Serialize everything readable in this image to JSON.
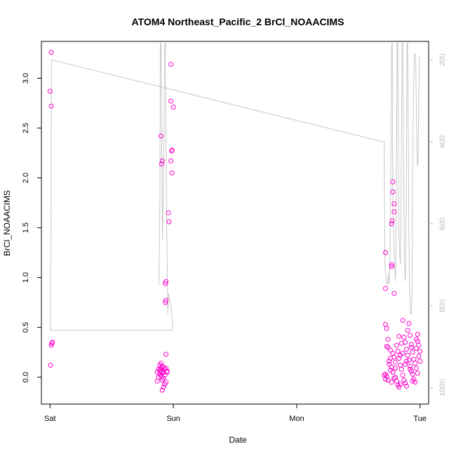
{
  "chart_data": {
    "type": "scatter",
    "title": "ATOM4 Northeast_Pacific_2 BrCl_NOAACIMS",
    "xlabel": "Date",
    "ylabel": "BrCl_NOAACIMS",
    "x_ticks": [
      {
        "value": 0,
        "label": "Sat"
      },
      {
        "value": 1,
        "label": "Sun"
      },
      {
        "value": 2,
        "label": "Mon"
      },
      {
        "value": 3,
        "label": "Tue"
      }
    ],
    "xlim": [
      -0.07,
      3.07
    ],
    "ylim": [
      -0.27,
      3.37
    ],
    "y_ticks": [
      0.0,
      0.5,
      1.0,
      1.5,
      2.0,
      2.5,
      3.0
    ],
    "y_tick_labels": [
      "0.0",
      "0.5",
      "1.0",
      "1.5",
      "2.0",
      "2.5",
      "3.0"
    ],
    "y2lim": [
      1040,
      155
    ],
    "y2_ticks": [
      200,
      400,
      600,
      800,
      1000
    ],
    "y2_tick_labels": [
      "200",
      "400",
      "600",
      "800",
      "1000"
    ],
    "colors": {
      "points": "#ff00cc",
      "pressure_line": "#c8c8c8",
      "axis": "#000000"
    },
    "series": [
      {
        "kind": "points",
        "points": [
          [
            0.01,
            3.26
          ],
          [
            0.0,
            2.87
          ],
          [
            0.01,
            2.72
          ],
          [
            0.02,
            0.35
          ],
          [
            0.015,
            0.34
          ],
          [
            0.01,
            0.32
          ],
          [
            0.005,
            0.12
          ],
          [
            0.9,
            2.42
          ],
          [
            0.91,
            2.17
          ],
          [
            0.905,
            2.14
          ],
          [
            0.94,
            0.96
          ],
          [
            0.935,
            0.94
          ],
          [
            0.94,
            0.77
          ],
          [
            0.935,
            0.75
          ],
          [
            0.96,
            1.65
          ],
          [
            0.965,
            1.56
          ],
          [
            0.98,
            3.14
          ],
          [
            0.98,
            2.77
          ],
          [
            0.99,
            2.28
          ],
          [
            0.985,
            2.27
          ],
          [
            0.98,
            2.17
          ],
          [
            0.99,
            2.05
          ],
          [
            1.0,
            2.71
          ],
          [
            0.94,
            0.23
          ],
          [
            0.9,
            0.14
          ],
          [
            0.89,
            0.12
          ],
          [
            0.91,
            0.11
          ],
          [
            0.92,
            0.1
          ],
          [
            0.9,
            0.09
          ],
          [
            0.88,
            0.08
          ],
          [
            0.93,
            0.08
          ],
          [
            0.89,
            0.07
          ],
          [
            0.9,
            0.06
          ],
          [
            0.92,
            0.05
          ],
          [
            0.87,
            0.05
          ],
          [
            0.95,
            0.05
          ],
          [
            0.91,
            0.04
          ],
          [
            0.89,
            0.03
          ],
          [
            0.93,
            0.02
          ],
          [
            0.9,
            0.01
          ],
          [
            0.88,
            0.0
          ],
          [
            0.92,
            -0.01
          ],
          [
            0.91,
            -0.03
          ],
          [
            0.87,
            -0.04
          ],
          [
            0.94,
            -0.05
          ],
          [
            0.93,
            -0.07
          ],
          [
            0.92,
            -0.1
          ],
          [
            0.91,
            -0.13
          ],
          [
            0.95,
            0.06
          ],
          [
            0.94,
            0.09
          ],
          [
            2.72,
            1.25
          ],
          [
            2.78,
            1.96
          ],
          [
            2.78,
            1.86
          ],
          [
            2.79,
            1.74
          ],
          [
            2.79,
            1.66
          ],
          [
            2.775,
            1.57
          ],
          [
            2.77,
            1.54
          ],
          [
            2.77,
            1.13
          ],
          [
            2.77,
            1.11
          ],
          [
            2.72,
            0.89
          ],
          [
            2.79,
            0.84
          ],
          [
            2.72,
            0.53
          ],
          [
            2.73,
            0.49
          ],
          [
            2.74,
            0.38
          ],
          [
            2.73,
            0.31
          ],
          [
            2.74,
            0.3
          ],
          [
            2.72,
            0.03
          ],
          [
            2.71,
            0.02
          ],
          [
            2.73,
            0.01
          ],
          [
            2.72,
            -0.02
          ],
          [
            2.75,
            0.13
          ],
          [
            2.76,
            0.07
          ],
          [
            2.74,
            -0.03
          ],
          [
            2.75,
            0.16
          ],
          [
            2.77,
            0.1
          ],
          [
            2.76,
            0.27
          ],
          [
            2.78,
            0.24
          ],
          [
            2.79,
            0.2
          ],
          [
            2.8,
            0.15
          ],
          [
            2.78,
            0.05
          ],
          [
            2.8,
            0.0
          ],
          [
            2.81,
            -0.04
          ],
          [
            2.82,
            -0.08
          ],
          [
            2.83,
            -0.1
          ],
          [
            2.84,
            -0.07
          ],
          [
            2.79,
            -0.01
          ],
          [
            2.81,
            0.32
          ],
          [
            2.82,
            0.26
          ],
          [
            2.83,
            0.19
          ],
          [
            2.84,
            0.12
          ],
          [
            2.85,
            0.08
          ],
          [
            2.86,
            0.02
          ],
          [
            2.87,
            -0.03
          ],
          [
            2.88,
            -0.06
          ],
          [
            2.89,
            -0.09
          ],
          [
            2.86,
            0.57
          ],
          [
            2.87,
            0.4
          ],
          [
            2.88,
            0.35
          ],
          [
            2.89,
            0.28
          ],
          [
            2.9,
            0.22
          ],
          [
            2.91,
            0.17
          ],
          [
            2.92,
            0.11
          ],
          [
            2.93,
            0.06
          ],
          [
            2.94,
            0.03
          ],
          [
            2.95,
            -0.02
          ],
          [
            2.9,
            0.47
          ],
          [
            2.91,
            0.54
          ],
          [
            2.92,
            0.42
          ],
          [
            2.93,
            0.33
          ],
          [
            2.94,
            0.25
          ],
          [
            2.95,
            0.18
          ],
          [
            2.96,
            0.14
          ],
          [
            2.97,
            0.09
          ],
          [
            2.98,
            0.04
          ],
          [
            2.96,
            -0.05
          ],
          [
            2.97,
            0.38
          ],
          [
            2.98,
            0.43
          ],
          [
            2.99,
            0.32
          ],
          [
            3.0,
            0.26
          ],
          [
            2.99,
            0.21
          ],
          [
            3.0,
            0.16
          ],
          [
            2.98,
            0.36
          ],
          [
            2.97,
            0.29
          ],
          [
            2.85,
            0.34
          ],
          [
            2.84,
            0.22
          ],
          [
            2.83,
            0.41
          ],
          [
            2.8,
            0.09
          ],
          [
            2.89,
            0.16
          ],
          [
            2.92,
            0.08
          ],
          [
            2.94,
            -0.04
          ],
          [
            2.76,
            0.19
          ],
          [
            2.77,
            -0.05
          ],
          [
            2.88,
            0.13
          ],
          [
            2.86,
            0.24
          ],
          [
            2.93,
            0.3
          ]
        ]
      },
      {
        "kind": "pressure_line",
        "points": [
          [
            0.0,
            860
          ],
          [
            0.005,
            855
          ],
          [
            0.012,
            200
          ],
          [
            2.7,
            400
          ],
          [
            2.71,
            400
          ],
          [
            2.715,
            700
          ],
          [
            2.72,
            720
          ],
          [
            2.73,
            745
          ],
          [
            2.74,
            750
          ],
          [
            2.745,
            720
          ],
          [
            2.75,
            745
          ],
          [
            2.755,
            700
          ],
          [
            2.76,
            620
          ],
          [
            2.765,
            400
          ],
          [
            2.77,
            160
          ],
          [
            2.775,
            160
          ],
          [
            2.78,
            560
          ],
          [
            2.79,
            660
          ],
          [
            2.8,
            740
          ],
          [
            2.805,
            700
          ],
          [
            2.81,
            400
          ],
          [
            2.815,
            160
          ],
          [
            2.82,
            160
          ],
          [
            2.825,
            480
          ],
          [
            2.83,
            640
          ],
          [
            2.84,
            700
          ],
          [
            2.845,
            620
          ],
          [
            2.85,
            400
          ],
          [
            2.855,
            160
          ],
          [
            2.86,
            160
          ],
          [
            2.865,
            380
          ],
          [
            2.87,
            580
          ],
          [
            2.875,
            700
          ],
          [
            2.88,
            740
          ],
          [
            2.885,
            700
          ],
          [
            2.89,
            400
          ],
          [
            2.895,
            160
          ],
          [
            2.9,
            160
          ],
          [
            2.905,
            400
          ],
          [
            2.91,
            640
          ],
          [
            2.915,
            760
          ],
          [
            2.92,
            800
          ],
          [
            2.925,
            820
          ],
          [
            2.93,
            820
          ],
          [
            2.935,
            760
          ],
          [
            2.94,
            500
          ],
          [
            2.945,
            350
          ],
          [
            2.95,
            240
          ],
          [
            2.955,
            190
          ],
          [
            2.96,
            185
          ],
          [
            2.965,
            200
          ],
          [
            2.97,
            300
          ],
          [
            2.975,
            420
          ],
          [
            2.98,
            460
          ],
          [
            2.985,
            440
          ],
          [
            2.99,
            280
          ],
          [
            2.995,
            200
          ],
          [
            3.0,
            190
          ]
        ]
      },
      {
        "kind": "pressure_line",
        "points": [
          [
            0.0,
            860
          ],
          [
            0.995,
            860
          ],
          [
            0.99,
            830
          ],
          [
            0.975,
            790
          ],
          [
            0.96,
            770
          ],
          [
            0.955,
            820
          ],
          [
            0.945,
            560
          ],
          [
            0.935,
            160
          ],
          [
            0.93,
            160
          ],
          [
            0.925,
            350
          ],
          [
            0.92,
            480
          ],
          [
            0.915,
            590
          ],
          [
            0.912,
            640
          ],
          [
            0.91,
            600
          ],
          [
            0.905,
            400
          ],
          [
            0.9,
            160
          ],
          [
            0.895,
            160
          ],
          [
            0.89,
            560
          ],
          [
            0.885,
            700
          ],
          [
            0.882,
            750
          ]
        ]
      }
    ]
  }
}
